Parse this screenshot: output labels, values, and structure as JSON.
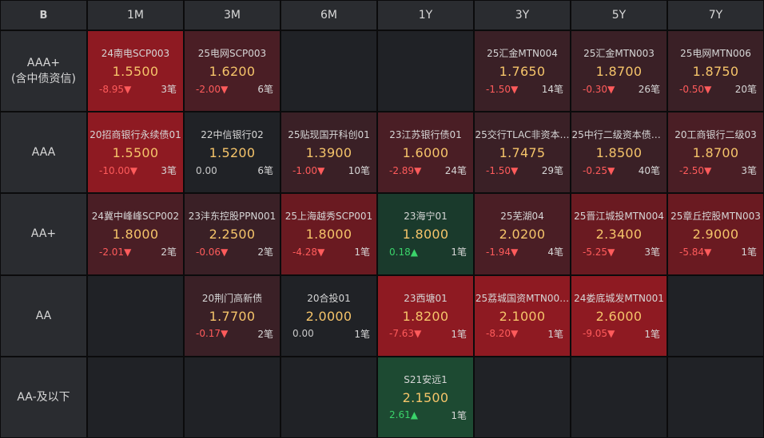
{
  "corner_label": "B",
  "columns": [
    "1M",
    "3M",
    "6M",
    "1Y",
    "3Y",
    "5Y",
    "7Y"
  ],
  "rows": [
    {
      "label": "AAA+\n(含中债资信)",
      "cells": [
        {
          "name": "24南电SCP003",
          "yield": "1.5500",
          "change": "-8.95",
          "arrow": "▼",
          "count": "3笔",
          "tone": "red1"
        },
        {
          "name": "25电网SCP003",
          "yield": "1.6200",
          "change": "-2.00",
          "arrow": "▼",
          "count": "6笔",
          "tone": "red3"
        },
        null,
        null,
        {
          "name": "25汇金MTN004",
          "yield": "1.7650",
          "change": "-1.50",
          "arrow": "▼",
          "count": "14笔",
          "tone": "red4"
        },
        {
          "name": "25汇金MTN003",
          "yield": "1.8700",
          "change": "-0.30",
          "arrow": "▼",
          "count": "26笔",
          "tone": "red4"
        },
        {
          "name": "25电网MTN006",
          "yield": "1.8750",
          "change": "-0.50",
          "arrow": "▼",
          "count": "20笔",
          "tone": "red4"
        }
      ]
    },
    {
      "label": "AAA",
      "cells": [
        {
          "name": "20招商银行永续债01",
          "yield": "1.5500",
          "change": "-10.00",
          "arrow": "▼",
          "count": "3笔",
          "tone": "red1"
        },
        {
          "name": "22中信银行02",
          "yield": "1.5200",
          "change": "0.00",
          "arrow": "",
          "count": "6笔",
          "tone": "neutral"
        },
        {
          "name": "25贴现国开科创01",
          "yield": "1.3900",
          "change": "-1.00",
          "arrow": "▼",
          "count": "10笔",
          "tone": "red4"
        },
        {
          "name": "23江苏银行债01",
          "yield": "1.6000",
          "change": "-2.89",
          "arrow": "▼",
          "count": "24笔",
          "tone": "red3"
        },
        {
          "name": "25交行TLAC非资本…",
          "yield": "1.7475",
          "change": "-1.50",
          "arrow": "▼",
          "count": "29笔",
          "tone": "red4"
        },
        {
          "name": "25中行二级资本债0…",
          "yield": "1.8500",
          "change": "-0.25",
          "arrow": "▼",
          "count": "40笔",
          "tone": "red4"
        },
        {
          "name": "20工商银行二级03",
          "yield": "1.8700",
          "change": "-2.50",
          "arrow": "▼",
          "count": "3笔",
          "tone": "red3"
        }
      ]
    },
    {
      "label": "AA+",
      "cells": [
        {
          "name": "24冀中峰峰SCP002",
          "yield": "1.8000",
          "change": "-2.01",
          "arrow": "▼",
          "count": "2笔",
          "tone": "red3"
        },
        {
          "name": "23沣东控股PPN001",
          "yield": "2.2500",
          "change": "-0.06",
          "arrow": "▼",
          "count": "2笔",
          "tone": "red4"
        },
        {
          "name": "25上海越秀SCP001",
          "yield": "1.8000",
          "change": "-4.28",
          "arrow": "▼",
          "count": "1笔",
          "tone": "red2"
        },
        {
          "name": "23海宁01",
          "yield": "1.8000",
          "change": "0.18",
          "arrow": "▲",
          "count": "1笔",
          "tone": "green2"
        },
        {
          "name": "25芜湖04",
          "yield": "2.0200",
          "change": "-1.94",
          "arrow": "▼",
          "count": "4笔",
          "tone": "red3"
        },
        {
          "name": "25晋江城投MTN004",
          "yield": "2.3400",
          "change": "-5.25",
          "arrow": "▼",
          "count": "3笔",
          "tone": "red2"
        },
        {
          "name": "25章丘控股MTN003",
          "yield": "2.9000",
          "change": "-5.84",
          "arrow": "▼",
          "count": "1笔",
          "tone": "red2"
        }
      ]
    },
    {
      "label": "AA",
      "cells": [
        null,
        {
          "name": "20荆门高新债",
          "yield": "1.7700",
          "change": "-0.17",
          "arrow": "▼",
          "count": "2笔",
          "tone": "red4"
        },
        {
          "name": "20合投01",
          "yield": "2.0000",
          "change": "0.00",
          "arrow": "",
          "count": "1笔",
          "tone": "neutral"
        },
        {
          "name": "23西塘01",
          "yield": "1.8200",
          "change": "-7.63",
          "arrow": "▼",
          "count": "1笔",
          "tone": "red1"
        },
        {
          "name": "25荔城国资MTN00…",
          "yield": "2.1000",
          "change": "-8.20",
          "arrow": "▼",
          "count": "1笔",
          "tone": "red1"
        },
        {
          "name": "24娄底城发MTN001",
          "yield": "2.6000",
          "change": "-9.05",
          "arrow": "▼",
          "count": "1笔",
          "tone": "red1"
        },
        null
      ]
    },
    {
      "label": "AA-及以下",
      "cells": [
        null,
        null,
        null,
        {
          "name": "S21安远1",
          "yield": "2.1500",
          "change": "2.61",
          "arrow": "▲",
          "count": "1笔",
          "tone": "green1"
        },
        null,
        null,
        null
      ]
    }
  ],
  "colors": {
    "yield": "#f5c46a",
    "negative_change": "#ff5b5b",
    "positive_change": "#3ad36a"
  }
}
